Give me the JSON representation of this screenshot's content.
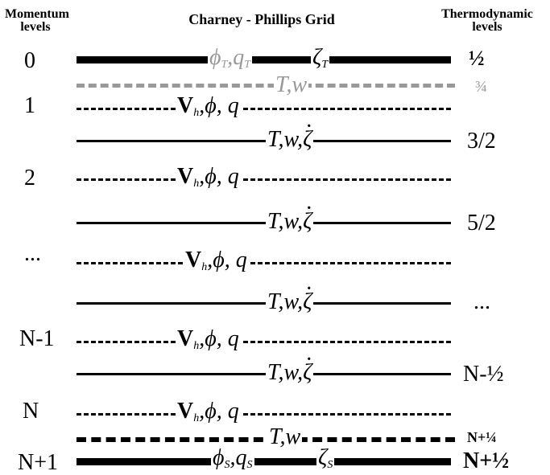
{
  "headers": {
    "momentum": [
      "Momentum",
      "levels"
    ],
    "title": "Charney - Phillips Grid",
    "thermo": [
      "Thermodynamic",
      "levels"
    ]
  },
  "momentum_levels": [
    "0",
    "1",
    "2",
    "...",
    "N-1",
    "N",
    "N+1"
  ],
  "thermo_levels": [
    "½",
    "¾",
    "3/2",
    "5/2",
    "...",
    "N-½",
    "N+¼",
    "N+½"
  ],
  "line_labels": {
    "top_phi": "ϕ",
    "top_phi_sub": "T",
    "top_q": "q",
    "top_q_sub": "T",
    "top_zeta": "ζ",
    "top_zeta_sub": "T",
    "tw": "T,w",
    "v": "V",
    "v_sub": "h",
    "phi_q": ",ϕ, q",
    "t_w_comma": "T,w,",
    "zeta": "ζ",
    "bot_phi": "ϕ",
    "bot_phi_sub": "S",
    "bot_q": "q",
    "bot_q_sub": "S",
    "bot_zeta": "ζ",
    "bot_zeta_sub": "S"
  },
  "colors": {
    "black": "#000000",
    "gray": "#999999"
  }
}
